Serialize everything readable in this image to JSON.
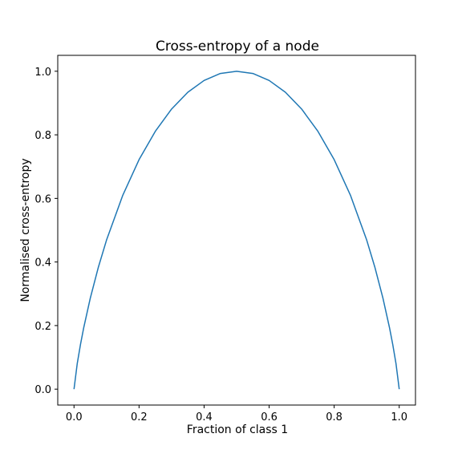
{
  "chart_data": {
    "type": "line",
    "title": "Cross-entropy of a node",
    "xlabel": "Fraction of class 1",
    "ylabel": "Normalised cross-entropy",
    "xlim": [
      -0.05,
      1.05
    ],
    "ylim": [
      -0.05,
      1.05
    ],
    "xticks": [
      0.0,
      0.2,
      0.4,
      0.6,
      0.8,
      1.0
    ],
    "yticks": [
      0.0,
      0.2,
      0.4,
      0.6,
      0.8,
      1.0
    ],
    "xtick_labels": [
      "0.0",
      "0.2",
      "0.4",
      "0.6",
      "0.8",
      "1.0"
    ],
    "ytick_labels": [
      "0.0",
      "0.2",
      "0.4",
      "0.6",
      "0.8",
      "1.0"
    ],
    "grid": false,
    "series": [
      {
        "color": "#1f77b4",
        "x": [
          0.0,
          0.01,
          0.02,
          0.03,
          0.05,
          0.075,
          0.1,
          0.15,
          0.2,
          0.25,
          0.3,
          0.35,
          0.4,
          0.45,
          0.5,
          0.55,
          0.6,
          0.65,
          0.7,
          0.75,
          0.8,
          0.85,
          0.9,
          0.925,
          0.95,
          0.97,
          0.98,
          0.99,
          1.0
        ],
        "y": [
          0.0,
          0.081,
          0.141,
          0.194,
          0.286,
          0.384,
          0.469,
          0.61,
          0.722,
          0.811,
          0.881,
          0.934,
          0.971,
          0.993,
          1.0,
          0.993,
          0.971,
          0.934,
          0.881,
          0.811,
          0.722,
          0.61,
          0.469,
          0.384,
          0.286,
          0.194,
          0.141,
          0.081,
          0.0
        ]
      }
    ]
  }
}
